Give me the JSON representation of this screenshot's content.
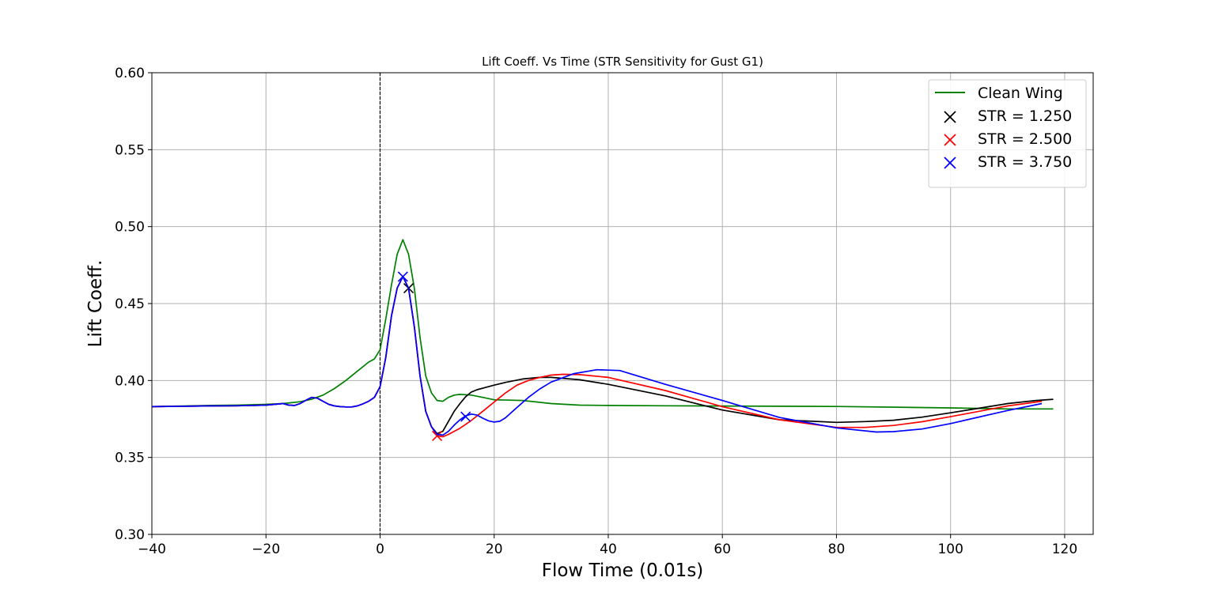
{
  "chart_data": {
    "type": "line",
    "title": "Lift Coeff. Vs Time (STR Sensitivity for Gust G1)",
    "xlabel": "Flow Time (0.01s)",
    "ylabel": "Lift Coeff.",
    "xlim": [
      -40,
      125
    ],
    "ylim": [
      0.3,
      0.6
    ],
    "xticks": [
      -40,
      -20,
      0,
      20,
      40,
      60,
      80,
      100,
      120
    ],
    "xtick_labels": [
      "−40",
      "−20",
      "0",
      "20",
      "40",
      "60",
      "80",
      "100",
      "120"
    ],
    "yticks": [
      0.3,
      0.35,
      0.4,
      0.45,
      0.5,
      0.55,
      0.6
    ],
    "ytick_labels": [
      "0.30",
      "0.35",
      "0.40",
      "0.45",
      "0.50",
      "0.55",
      "0.60"
    ],
    "grid": true,
    "legend_position": "top-right",
    "vline": {
      "x": 0,
      "style": "dashed",
      "color": "#000000"
    },
    "series": [
      {
        "name": "Clean Wing",
        "color": "#008000",
        "legend_marker": "line",
        "x": [
          -40,
          -30,
          -25,
          -20,
          -17,
          -14,
          -12,
          -10,
          -8,
          -6,
          -4,
          -2,
          -1,
          0,
          1,
          2,
          3,
          4,
          5,
          6,
          7,
          8,
          9,
          10,
          11,
          12,
          13,
          14,
          16,
          18,
          20,
          25,
          30,
          35,
          40,
          50,
          60,
          80,
          100,
          110,
          118
        ],
        "y": [
          0.383,
          0.3838,
          0.384,
          0.3845,
          0.385,
          0.3862,
          0.3878,
          0.3905,
          0.3948,
          0.4,
          0.406,
          0.412,
          0.414,
          0.42,
          0.44,
          0.462,
          0.482,
          0.4915,
          0.482,
          0.46,
          0.428,
          0.403,
          0.392,
          0.387,
          0.3865,
          0.389,
          0.3905,
          0.391,
          0.3905,
          0.389,
          0.3875,
          0.387,
          0.385,
          0.384,
          0.3838,
          0.3836,
          0.3834,
          0.3831,
          0.3822,
          0.3815,
          0.3815
        ]
      },
      {
        "name": "STR = 1.250",
        "color": "#000000",
        "legend_marker": "x",
        "x": [
          -40,
          -30,
          -25,
          -20,
          -17,
          -16,
          -15,
          -14,
          -13,
          -12,
          -11,
          -10,
          -9,
          -8,
          -7,
          -6,
          -5,
          -4,
          -3,
          -2,
          -1,
          0,
          1,
          2,
          3,
          4,
          5,
          6,
          7,
          8,
          9,
          10,
          11,
          12,
          13,
          14,
          15,
          16,
          17,
          18,
          20,
          22,
          25,
          28,
          30,
          35,
          40,
          50,
          60,
          70,
          80,
          85,
          90,
          95,
          100,
          105,
          110,
          115,
          118
        ],
        "y": [
          0.383,
          0.3835,
          0.3836,
          0.384,
          0.385,
          0.384,
          0.3838,
          0.385,
          0.3872,
          0.389,
          0.3885,
          0.3865,
          0.3845,
          0.3835,
          0.383,
          0.3828,
          0.3828,
          0.3835,
          0.3848,
          0.3865,
          0.389,
          0.396,
          0.415,
          0.442,
          0.46,
          0.4675,
          0.46,
          0.435,
          0.403,
          0.38,
          0.37,
          0.3655,
          0.367,
          0.3735,
          0.38,
          0.385,
          0.3895,
          0.3925,
          0.394,
          0.395,
          0.397,
          0.3988,
          0.401,
          0.402,
          0.402,
          0.4005,
          0.3975,
          0.39,
          0.3808,
          0.3745,
          0.3728,
          0.3733,
          0.3742,
          0.3762,
          0.379,
          0.382,
          0.385,
          0.387,
          0.3878
        ],
        "cross_markers": [
          [
            5,
            0.46
          ]
        ]
      },
      {
        "name": "STR = 2.500",
        "color": "#ff0000",
        "legend_marker": "x",
        "x": [
          -40,
          -30,
          -25,
          -20,
          -17,
          -16,
          -15,
          -14,
          -13,
          -12,
          -11,
          -10,
          -9,
          -8,
          -7,
          -6,
          -5,
          -4,
          -3,
          -2,
          -1,
          0,
          1,
          2,
          3,
          4,
          5,
          6,
          7,
          8,
          9,
          10,
          11,
          12,
          14,
          16,
          18,
          20,
          22,
          24,
          26,
          28,
          30,
          32,
          35,
          40,
          50,
          60,
          70,
          80,
          85,
          90,
          95,
          100,
          105,
          110,
          116
        ],
        "y": [
          0.383,
          0.3835,
          0.3836,
          0.384,
          0.385,
          0.384,
          0.3838,
          0.385,
          0.3872,
          0.389,
          0.3885,
          0.3865,
          0.3845,
          0.3835,
          0.383,
          0.3828,
          0.3828,
          0.3835,
          0.3848,
          0.3865,
          0.389,
          0.396,
          0.415,
          0.442,
          0.46,
          0.4675,
          0.46,
          0.435,
          0.403,
          0.38,
          0.37,
          0.364,
          0.3635,
          0.365,
          0.369,
          0.374,
          0.38,
          0.386,
          0.392,
          0.397,
          0.4,
          0.402,
          0.4035,
          0.404,
          0.4038,
          0.402,
          0.3935,
          0.383,
          0.3745,
          0.3695,
          0.3695,
          0.3708,
          0.3732,
          0.3765,
          0.38,
          0.3835,
          0.3865
        ],
        "cross_markers": [
          [
            10,
            0.364
          ]
        ]
      },
      {
        "name": "STR = 3.750",
        "color": "#0000ff",
        "legend_marker": "x",
        "x": [
          -40,
          -30,
          -25,
          -20,
          -17,
          -16,
          -15,
          -14,
          -13,
          -12,
          -11,
          -10,
          -9,
          -8,
          -7,
          -6,
          -5,
          -4,
          -3,
          -2,
          -1,
          0,
          1,
          2,
          3,
          4,
          5,
          6,
          7,
          8,
          9,
          10,
          11,
          12,
          13,
          14,
          15,
          16,
          17,
          18,
          19,
          20,
          21,
          22,
          24,
          26,
          28,
          30,
          34,
          38,
          42,
          50,
          60,
          70,
          80,
          87,
          90,
          95,
          100,
          105,
          110,
          116
        ],
        "y": [
          0.383,
          0.3835,
          0.3836,
          0.384,
          0.385,
          0.384,
          0.3838,
          0.385,
          0.3872,
          0.389,
          0.3885,
          0.3865,
          0.3845,
          0.3835,
          0.383,
          0.3828,
          0.3828,
          0.3835,
          0.3848,
          0.3865,
          0.389,
          0.396,
          0.415,
          0.442,
          0.46,
          0.4675,
          0.46,
          0.435,
          0.403,
          0.38,
          0.37,
          0.365,
          0.3645,
          0.367,
          0.371,
          0.3745,
          0.377,
          0.3782,
          0.3775,
          0.3755,
          0.3738,
          0.373,
          0.3735,
          0.3758,
          0.3825,
          0.389,
          0.3945,
          0.399,
          0.4045,
          0.407,
          0.4065,
          0.3975,
          0.387,
          0.376,
          0.3692,
          0.3665,
          0.3668,
          0.3685,
          0.372,
          0.3763,
          0.3805,
          0.385
        ],
        "cross_markers": [
          [
            4,
            0.4675
          ],
          [
            15,
            0.3765
          ]
        ]
      }
    ]
  }
}
